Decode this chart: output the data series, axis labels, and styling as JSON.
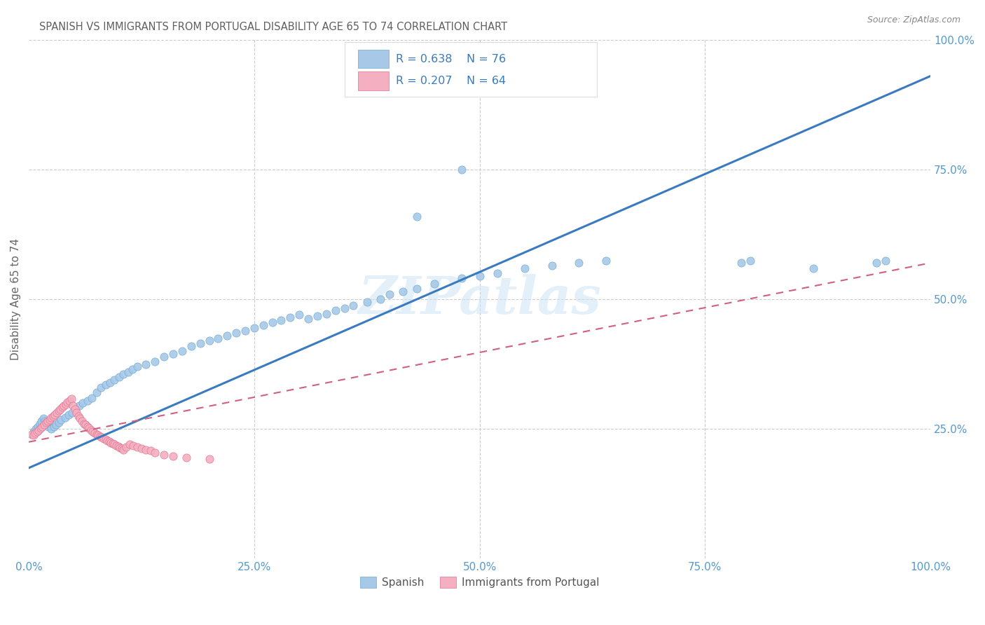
{
  "title": "SPANISH VS IMMIGRANTS FROM PORTUGAL DISABILITY AGE 65 TO 74 CORRELATION CHART",
  "source": "Source: ZipAtlas.com",
  "ylabel": "Disability Age 65 to 74",
  "watermark": "ZIPatlas",
  "xlim": [
    0,
    1
  ],
  "ylim": [
    0,
    1
  ],
  "xticks": [
    0,
    0.25,
    0.5,
    0.75,
    1.0
  ],
  "xticklabels": [
    "0.0%",
    "25.0%",
    "50.0%",
    "75.0%",
    "100.0%"
  ],
  "yticks": [
    0.25,
    0.5,
    0.75,
    1.0
  ],
  "yticklabels": [
    "25.0%",
    "50.0%",
    "75.0%",
    "100.0%"
  ],
  "blue_R": 0.638,
  "blue_N": 76,
  "pink_R": 0.207,
  "pink_N": 64,
  "blue_color": "#a8c8e8",
  "pink_color": "#f4b0c0",
  "blue_edge_color": "#6aaad4",
  "pink_edge_color": "#e07090",
  "blue_line_color": "#3a7abf",
  "pink_line_color": "#d06080",
  "legend_text_color": "#3a7abf",
  "title_color": "#606060",
  "axis_color": "#5599cc",
  "grid_color": "#cccccc",
  "blue_scatter_x": [
    0.005,
    0.008,
    0.01,
    0.012,
    0.014,
    0.016,
    0.018,
    0.02,
    0.022,
    0.025,
    0.028,
    0.03,
    0.033,
    0.036,
    0.04,
    0.044,
    0.048,
    0.052,
    0.056,
    0.06,
    0.065,
    0.07,
    0.075,
    0.08,
    0.085,
    0.09,
    0.095,
    0.1,
    0.105,
    0.11,
    0.115,
    0.12,
    0.13,
    0.14,
    0.15,
    0.16,
    0.17,
    0.18,
    0.19,
    0.2,
    0.21,
    0.22,
    0.23,
    0.24,
    0.25,
    0.26,
    0.27,
    0.28,
    0.29,
    0.3,
    0.31,
    0.32,
    0.33,
    0.34,
    0.35,
    0.36,
    0.375,
    0.39,
    0.4,
    0.415,
    0.43,
    0.45,
    0.48,
    0.5,
    0.52,
    0.55,
    0.58,
    0.61,
    0.64,
    0.79,
    0.8,
    0.87,
    0.94,
    0.95,
    0.48,
    0.43
  ],
  "blue_scatter_y": [
    0.245,
    0.25,
    0.255,
    0.26,
    0.265,
    0.27,
    0.265,
    0.26,
    0.255,
    0.25,
    0.255,
    0.258,
    0.262,
    0.268,
    0.272,
    0.278,
    0.282,
    0.288,
    0.295,
    0.3,
    0.305,
    0.31,
    0.32,
    0.33,
    0.335,
    0.34,
    0.345,
    0.35,
    0.355,
    0.36,
    0.365,
    0.37,
    0.375,
    0.38,
    0.39,
    0.395,
    0.4,
    0.41,
    0.415,
    0.42,
    0.425,
    0.43,
    0.435,
    0.44,
    0.445,
    0.45,
    0.455,
    0.46,
    0.465,
    0.47,
    0.462,
    0.468,
    0.472,
    0.478,
    0.482,
    0.488,
    0.495,
    0.5,
    0.51,
    0.515,
    0.52,
    0.53,
    0.54,
    0.545,
    0.55,
    0.56,
    0.565,
    0.57,
    0.575,
    0.57,
    0.575,
    0.56,
    0.57,
    0.575,
    0.75,
    0.66
  ],
  "pink_scatter_x": [
    0.003,
    0.005,
    0.007,
    0.009,
    0.011,
    0.013,
    0.015,
    0.017,
    0.019,
    0.021,
    0.023,
    0.025,
    0.027,
    0.029,
    0.031,
    0.033,
    0.035,
    0.037,
    0.039,
    0.041,
    0.043,
    0.045,
    0.047,
    0.049,
    0.051,
    0.053,
    0.055,
    0.057,
    0.059,
    0.061,
    0.063,
    0.065,
    0.067,
    0.069,
    0.071,
    0.073,
    0.075,
    0.077,
    0.079,
    0.081,
    0.083,
    0.085,
    0.087,
    0.089,
    0.091,
    0.093,
    0.095,
    0.097,
    0.099,
    0.101,
    0.103,
    0.105,
    0.108,
    0.112,
    0.116,
    0.12,
    0.125,
    0.13,
    0.135,
    0.14,
    0.15,
    0.16,
    0.175,
    0.2
  ],
  "pink_scatter_y": [
    0.24,
    0.238,
    0.242,
    0.245,
    0.248,
    0.252,
    0.255,
    0.258,
    0.262,
    0.265,
    0.268,
    0.272,
    0.275,
    0.278,
    0.282,
    0.285,
    0.288,
    0.292,
    0.295,
    0.298,
    0.302,
    0.305,
    0.308,
    0.295,
    0.288,
    0.282,
    0.275,
    0.27,
    0.265,
    0.26,
    0.258,
    0.255,
    0.252,
    0.248,
    0.245,
    0.242,
    0.24,
    0.238,
    0.236,
    0.234,
    0.232,
    0.23,
    0.228,
    0.226,
    0.224,
    0.222,
    0.22,
    0.218,
    0.216,
    0.214,
    0.212,
    0.21,
    0.215,
    0.22,
    0.218,
    0.215,
    0.212,
    0.21,
    0.208,
    0.205,
    0.2,
    0.198,
    0.195,
    0.192
  ],
  "blue_trendline": [
    0.0,
    1.0,
    0.175,
    0.93
  ],
  "pink_trendline": [
    0.0,
    1.0,
    0.225,
    0.57
  ]
}
